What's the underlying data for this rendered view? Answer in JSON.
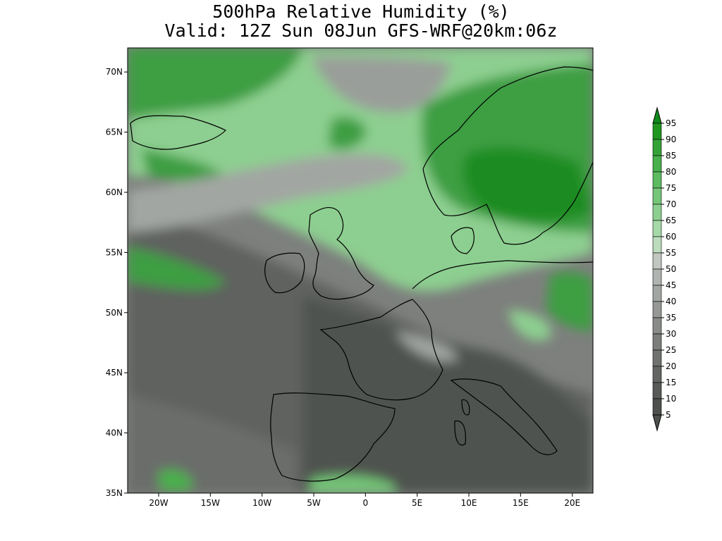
{
  "title": {
    "line1": "500hPa Relative Humidity (%)",
    "line2": "Valid: 12Z Sun 08Jun GFS-WRF@20km:06z"
  },
  "map": {
    "lat_ticks": [
      "70N",
      "65N",
      "60N",
      "55N",
      "50N",
      "45N",
      "40N",
      "35N"
    ],
    "lon_ticks": [
      "20W",
      "15W",
      "10W",
      "5W",
      "0",
      "5E",
      "10E",
      "15E",
      "20E"
    ],
    "lat_range": [
      35,
      72
    ],
    "lon_range": [
      -23,
      22
    ]
  },
  "colorbar": {
    "levels": [
      "95",
      "90",
      "85",
      "80",
      "75",
      "70",
      "65",
      "60",
      "55",
      "50",
      "45",
      "40",
      "35",
      "30",
      "25",
      "20",
      "15",
      "10",
      "5"
    ],
    "colors": [
      "#0f8a1a",
      "#1f961f",
      "#34a336",
      "#48b04c",
      "#5dbb61",
      "#74c678",
      "#8dcf90",
      "#a6d9a8",
      "#bcdcbd",
      "#c2c7c2",
      "#b0b4b0",
      "#a2a6a2",
      "#959895",
      "#888b88",
      "#7b7e7b",
      "#6f726f",
      "#636663",
      "#575a57",
      "#4d504d"
    ]
  }
}
